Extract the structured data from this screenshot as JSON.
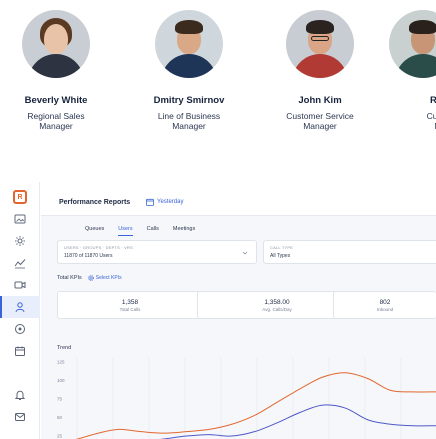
{
  "people": [
    {
      "name": "Beverly White",
      "role": "Regional Sales\nManager",
      "skin": "#e9c3a8",
      "hair": "#5a3a22",
      "shirt": "#2e3342",
      "bg": "#c9ced4"
    },
    {
      "name": "Dmitry Smirnov",
      "role": "Line of Business\nManager",
      "skin": "#d9a987",
      "hair": "#3b2a1e",
      "shirt": "#1f3557",
      "bg": "#cfd6dc"
    },
    {
      "name": "John Kim",
      "role": "Customer Service\nManager",
      "skin": "#d9a586",
      "hair": "#2b2320",
      "shirt": "#b23a35",
      "bg": "#c7cdd3"
    },
    {
      "name": "Ray Sr",
      "role": "Customer\nMana",
      "skin": "#c99577",
      "hair": "#2a211c",
      "shirt": "#2a4d4a",
      "bg": "#c8d0d0"
    }
  ],
  "header": {
    "title": "Performance Reports",
    "date_label": "Yesterday"
  },
  "tabs": [
    {
      "label": "Queues",
      "active": false
    },
    {
      "label": "Users",
      "active": true
    },
    {
      "label": "Calls",
      "active": false
    },
    {
      "label": "Meetings",
      "active": false
    }
  ],
  "filters": {
    "users": {
      "label": "USERS · GROUPS · DEPTS · VRS",
      "value": "11870 of 11870 Users"
    },
    "call_type": {
      "label": "CALL TYPE",
      "value": "All Types"
    }
  },
  "kpi_header": {
    "title": "Total KPIs",
    "select_label": "Select KPIs"
  },
  "kpis": [
    {
      "value": "1,358",
      "label": "Total Calls"
    },
    {
      "value": "1,358.00",
      "label": "Avg. Calls/Day"
    },
    {
      "value": "802",
      "label": "Inbound"
    }
  ],
  "trend": {
    "title": "Trend"
  },
  "chart_data": {
    "type": "line",
    "title": "Trend",
    "xlabel": "",
    "ylabel": "",
    "ylim": [
      20,
      130
    ],
    "yticks": [
      125,
      100,
      75,
      50,
      25
    ],
    "grid": true,
    "x": [
      0,
      1,
      2,
      3,
      4,
      5,
      6,
      7,
      8,
      9,
      10,
      11,
      12,
      13,
      14,
      15,
      16
    ],
    "series": [
      {
        "color": "#e2672f",
        "values": [
          18,
          27,
          33,
          30,
          28,
          30,
          33,
          40,
          52,
          70,
          88,
          104,
          110,
          102,
          86,
          84,
          84
        ]
      },
      {
        "color": "#4d58c9",
        "values": [
          10,
          12,
          14,
          16,
          20,
          24,
          26,
          24,
          30,
          42,
          56,
          66,
          62,
          46,
          40,
          38,
          38
        ]
      }
    ]
  },
  "colors": {
    "accent": "#3a63d8",
    "brand": "#e2672f"
  },
  "sidebar": {
    "items": [
      {
        "name": "logo",
        "icon": "brand-logo"
      },
      {
        "name": "dashboard",
        "icon": "image-icon"
      },
      {
        "name": "settings",
        "icon": "gear-icon"
      },
      {
        "name": "analytics",
        "icon": "line-chart-icon"
      },
      {
        "name": "video",
        "icon": "camera-icon"
      },
      {
        "name": "users",
        "icon": "person-icon"
      },
      {
        "name": "location",
        "icon": "pin-icon"
      },
      {
        "name": "calendar",
        "icon": "calendar-icon"
      },
      {
        "name": "notifications",
        "icon": "bell-icon"
      },
      {
        "name": "messages",
        "icon": "mail-icon"
      }
    ]
  }
}
